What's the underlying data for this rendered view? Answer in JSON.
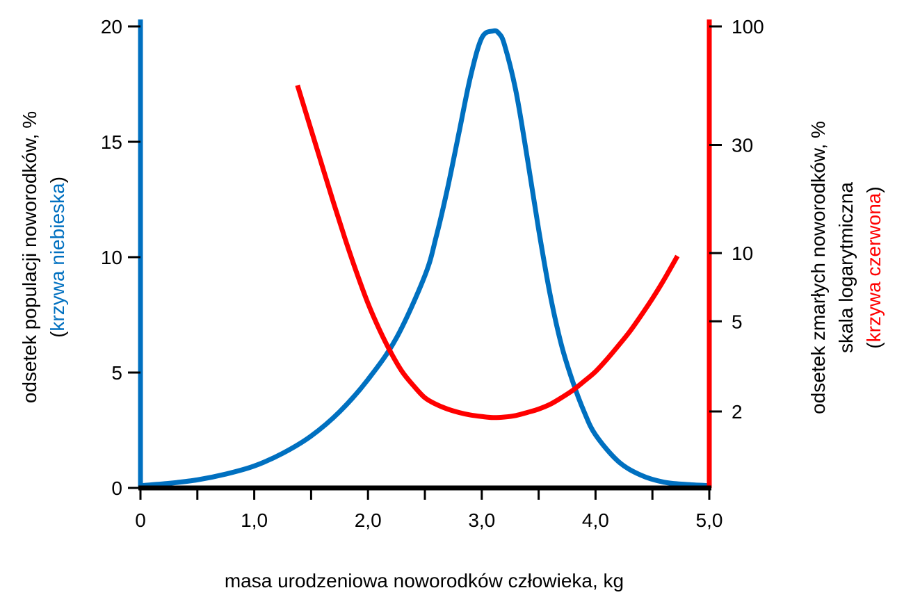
{
  "chart_data": {
    "type": "line",
    "title": "",
    "xlabel": "masa urodzeniowa noworodków człowieka, kg",
    "xlim": [
      0,
      5
    ],
    "xticks": [
      0,
      0.5,
      1.0,
      1.5,
      2.0,
      2.5,
      3.0,
      3.5,
      4.0,
      4.5,
      5.0
    ],
    "xtick_labels": [
      {
        "value": 0,
        "label": "0"
      },
      {
        "value": 1,
        "label": "1,0"
      },
      {
        "value": 2,
        "label": "2,0"
      },
      {
        "value": 3,
        "label": "3,0"
      },
      {
        "value": 4,
        "label": "4,0"
      },
      {
        "value": 5,
        "label": "5,0"
      }
    ],
    "y_left": {
      "label_main": "odsetek populacji noworodków, %",
      "label_open": "(",
      "label_colored": "krzywa niebieska",
      "label_close": ")",
      "color": "#0070c0",
      "scale": "linear",
      "ylim": [
        0,
        20
      ],
      "ticks": [
        0,
        5,
        10,
        15,
        20
      ],
      "tick_labels": [
        "0",
        "5",
        "10",
        "15",
        "20"
      ]
    },
    "y_right": {
      "label_line1": "odsetek zmarłych noworodków, %",
      "label_line2": "skala logarytmiczna",
      "label_open": "(",
      "label_colored": "krzywa czerwona",
      "label_close": ")",
      "color": "#ff0000",
      "scale": "log",
      "ylim": [
        0.92,
        100
      ],
      "ticks": [
        2,
        5,
        10,
        30,
        100
      ],
      "tick_labels": [
        "2",
        "5",
        "10",
        "30",
        "100"
      ]
    },
    "grid": false,
    "series": [
      {
        "axis": "left",
        "color": "#0070c0",
        "x": [
          0,
          0.25,
          0.5,
          0.75,
          1.0,
          1.25,
          1.5,
          1.75,
          2.0,
          2.25,
          2.5,
          2.6,
          2.7,
          2.8,
          2.9,
          3.0,
          3.1,
          3.15,
          3.2,
          3.3,
          3.4,
          3.5,
          3.6,
          3.7,
          3.8,
          3.9,
          4.0,
          4.2,
          4.4,
          4.6,
          4.8,
          5.0
        ],
        "y": [
          0.1,
          0.2,
          0.35,
          0.6,
          0.95,
          1.5,
          2.25,
          3.3,
          4.7,
          6.5,
          9.2,
          10.9,
          13.0,
          15.4,
          17.8,
          19.5,
          19.8,
          19.7,
          19.2,
          17.2,
          14.3,
          11.2,
          8.4,
          6.2,
          4.6,
          3.3,
          2.3,
          1.15,
          0.55,
          0.25,
          0.15,
          0.1
        ]
      },
      {
        "axis": "right",
        "color": "#ff0000",
        "x": [
          1.38,
          1.5,
          1.6,
          1.7,
          1.8,
          1.9,
          2.0,
          2.1,
          2.2,
          2.3,
          2.4,
          2.5,
          2.6,
          2.7,
          2.8,
          2.9,
          3.0,
          3.1,
          3.2,
          3.3,
          3.4,
          3.5,
          3.6,
          3.7,
          3.8,
          3.9,
          4.0,
          4.1,
          4.2,
          4.3,
          4.4,
          4.5,
          4.6,
          4.72
        ],
        "y": [
          55,
          35,
          24,
          16.5,
          11.5,
          8.2,
          6.0,
          4.6,
          3.65,
          3.0,
          2.6,
          2.3,
          2.15,
          2.05,
          1.98,
          1.93,
          1.9,
          1.88,
          1.89,
          1.92,
          1.98,
          2.05,
          2.15,
          2.3,
          2.48,
          2.72,
          3.0,
          3.4,
          3.9,
          4.5,
          5.3,
          6.3,
          7.6,
          9.7
        ]
      }
    ]
  }
}
